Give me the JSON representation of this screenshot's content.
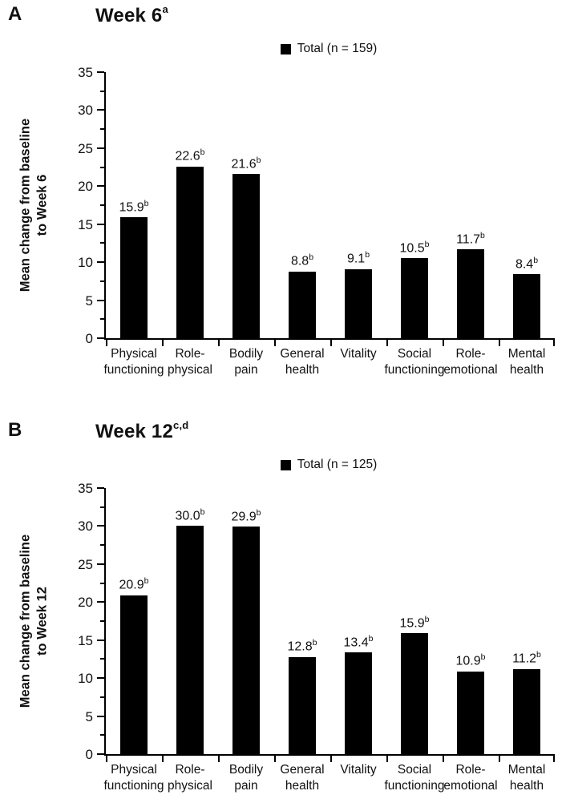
{
  "chart_data": [
    {
      "type": "bar",
      "panel_label": "A",
      "title": "Week 6",
      "title_superscript": "a",
      "legend_label": "Total (n = 159)",
      "legend_color": "#000000",
      "legend_position": "top-center",
      "ylabel": "Mean change from baseline to Week 6",
      "ylabel_lines": [
        "Mean change from baseline",
        "to Week 6"
      ],
      "categories": [
        "Physical functioning",
        "Role-physical",
        "Bodily pain",
        "General health",
        "Vitality",
        "Social functioning",
        "Role-emotional",
        "Mental health"
      ],
      "category_lines": [
        [
          "Physical",
          "functioning"
        ],
        [
          "Role-",
          "physical"
        ],
        [
          "Bodily",
          "pain"
        ],
        [
          "General",
          "health"
        ],
        [
          "Vitality"
        ],
        [
          "Social",
          "functioning"
        ],
        [
          "Role-",
          "emotional"
        ],
        [
          "Mental",
          "health"
        ]
      ],
      "values": [
        15.9,
        22.6,
        21.6,
        8.8,
        9.1,
        10.5,
        11.7,
        8.4
      ],
      "value_labels": [
        "15.9",
        "22.6",
        "21.6",
        "8.8",
        "9.1",
        "10.5",
        "11.7",
        "8.4"
      ],
      "value_superscript": "b",
      "ylim": [
        0,
        35
      ],
      "ytick_step": 5,
      "minor_tick_step": 2.5,
      "bar_color": "#000000",
      "grid": false
    },
    {
      "type": "bar",
      "panel_label": "B",
      "title": "Week 12",
      "title_superscript": "c,d",
      "legend_label": "Total (n = 125)",
      "legend_color": "#000000",
      "legend_position": "top-center",
      "ylabel": "Mean change from baseline to Week 12",
      "ylabel_lines": [
        "Mean change from baseline",
        "to Week 12"
      ],
      "categories": [
        "Physical functioning",
        "Role-physical",
        "Bodily pain",
        "General health",
        "Vitality",
        "Social functioning",
        "Role-emotional",
        "Mental health"
      ],
      "category_lines": [
        [
          "Physical",
          "functioning"
        ],
        [
          "Role-",
          "physical"
        ],
        [
          "Bodily",
          "pain"
        ],
        [
          "General",
          "health"
        ],
        [
          "Vitality"
        ],
        [
          "Social",
          "functioning"
        ],
        [
          "Role-",
          "emotional"
        ],
        [
          "Mental",
          "health"
        ]
      ],
      "values": [
        20.9,
        30.0,
        29.9,
        12.8,
        13.4,
        15.9,
        10.9,
        11.2
      ],
      "value_labels": [
        "20.9",
        "30.0",
        "29.9",
        "12.8",
        "13.4",
        "15.9",
        "10.9",
        "11.2"
      ],
      "value_superscript": "b",
      "ylim": [
        0,
        35
      ],
      "ytick_step": 5,
      "minor_tick_step": 2.5,
      "bar_color": "#000000",
      "grid": false
    }
  ]
}
